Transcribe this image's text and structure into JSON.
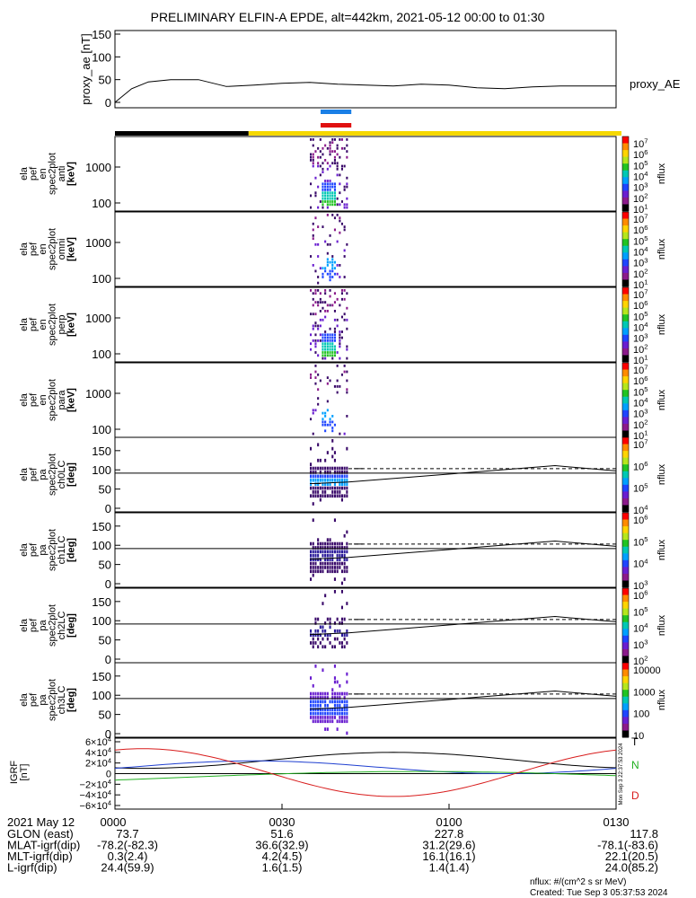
{
  "header": {
    "title": "PRELIMINARY ELFIN-A EPDE, alt=442km, 2021-05-12 00:00 to 01:30"
  },
  "colors": {
    "state_black": "#000000",
    "state_yellow": "#f5d800",
    "marker_blue": "#1a7fe6",
    "marker_red": "#e01010",
    "field_black": "#000000",
    "field_blue": "#1f3fd0",
    "field_green": "#22b022",
    "field_red": "#d81c1c"
  },
  "chart_data": {
    "type": "line",
    "time_range": [
      "0000",
      "0130"
    ],
    "time_ticks": [
      "0000",
      "0030",
      "0100",
      "0130"
    ],
    "proxy_ae": {
      "ylabel": "proxy_ae [nT]",
      "yticks": [
        "150",
        "100",
        "50",
        "0"
      ],
      "ylim": [
        0,
        150
      ],
      "series_name": "proxy_AE",
      "t_min": [
        0,
        3,
        6,
        10,
        15,
        20,
        25,
        30,
        35,
        40,
        45,
        50,
        55,
        60,
        65,
        70,
        75,
        80,
        85,
        90
      ],
      "values": [
        0,
        30,
        45,
        50,
        50,
        35,
        38,
        42,
        44,
        40,
        38,
        36,
        40,
        38,
        32,
        30,
        34,
        36,
        36,
        36
      ]
    },
    "state_bar_split_min": 24,
    "markers": {
      "start_min": 35,
      "end_min": 41
    },
    "panels": [
      {
        "id": "anti",
        "ylabel": [
          "ela",
          "pef",
          "en",
          "spec2plot",
          "anti",
          "[keV]"
        ],
        "yticks": [
          "1000",
          "100"
        ],
        "zticks": [
          "10^7",
          "10^6",
          "10^5",
          "10^4",
          "10^3",
          "10^2",
          "10^1"
        ],
        "zlabel": "nflux"
      },
      {
        "id": "omni",
        "ylabel": [
          "ela",
          "pef",
          "en",
          "spec2plot",
          "omni",
          "[keV]"
        ],
        "yticks": [
          "1000",
          "100"
        ],
        "zticks": [
          "10^7",
          "10^6",
          "10^5",
          "10^4",
          "10^3",
          "10^2",
          "10^1"
        ],
        "zlabel": "nflux"
      },
      {
        "id": "perp",
        "ylabel": [
          "ela",
          "pef",
          "en",
          "spec2plot",
          "perp",
          "[keV]"
        ],
        "yticks": [
          "1000",
          "100"
        ],
        "zticks": [
          "10^7",
          "10^6",
          "10^5",
          "10^4",
          "10^3",
          "10^2",
          "10^1"
        ],
        "zlabel": "nflux"
      },
      {
        "id": "para",
        "ylabel": [
          "ela",
          "pef",
          "en",
          "spec2plot",
          "para",
          "[keV]"
        ],
        "yticks": [
          "1000",
          "100"
        ],
        "zticks": [
          "10^7",
          "10^6",
          "10^5",
          "10^4",
          "10^3",
          "10^2",
          "10^1"
        ],
        "zlabel": "nflux"
      },
      {
        "id": "ch0LC",
        "ylabel": [
          "ela",
          "pef",
          "pa",
          "spec2plot",
          "ch0LC",
          "[deg]"
        ],
        "yticks": [
          "150",
          "100",
          "50",
          "0"
        ],
        "zticks": [
          "10^7",
          "10^6",
          "10^5",
          "10^4"
        ],
        "zlabel": "nflux"
      },
      {
        "id": "ch1LC",
        "ylabel": [
          "ela",
          "pef",
          "pa",
          "spec2plot",
          "ch1LC",
          "[deg]"
        ],
        "yticks": [
          "150",
          "100",
          "50",
          "0"
        ],
        "zticks": [
          "10^6",
          "10^5",
          "10^4",
          "10^3"
        ],
        "zlabel": "nflux"
      },
      {
        "id": "ch2LC",
        "ylabel": [
          "ela",
          "pef",
          "pa",
          "spec2plot",
          "ch2LC",
          "[deg]"
        ],
        "yticks": [
          "150",
          "100",
          "50",
          "0"
        ],
        "zticks": [
          "10^6",
          "10^5",
          "10^4",
          "10^3",
          "10^2"
        ],
        "zlabel": "nflux"
      },
      {
        "id": "ch3LC",
        "ylabel": [
          "ela",
          "pef",
          "pa",
          "spec2plot",
          "ch3LC",
          "[deg]"
        ],
        "yticks": [
          "150",
          "100",
          "50",
          "0"
        ],
        "zticks": [
          "10000",
          "1000",
          "100",
          "10"
        ],
        "zlabel": "nflux"
      }
    ],
    "igrf": {
      "ylabel": [
        "IGRF",
        "[nT]"
      ],
      "yticks": [
        "6×10^4",
        "4×10^4",
        "2×10^4",
        "0",
        "−2×10^4",
        "−4×10^4",
        "−6×10^4"
      ],
      "ylim": [
        -60000,
        60000
      ],
      "side_labels": [
        "T",
        "N",
        "D"
      ],
      "stamp": "Mon Sep  3 22:37:53 2024"
    }
  },
  "annotations": {
    "date_label": "2021 May 12",
    "rows": [
      {
        "label": "GLON (east)",
        "values": [
          "73.7",
          "51.6",
          "227.8",
          "117.8"
        ]
      },
      {
        "label": "MLAT-igrf(dip)",
        "values": [
          "-78.2(-82.3)",
          "36.6(32.9)",
          "31.2(29.6)",
          "-78.1(-83.6)"
        ]
      },
      {
        "label": "MLT-igrf(dip)",
        "values": [
          "0.3(2.4)",
          "4.2(4.5)",
          "16.1(16.1)",
          "22.1(20.5)"
        ]
      },
      {
        "label": "L-igrf(dip)",
        "values": [
          "24.4(59.9)",
          "1.6(1.5)",
          "1.4(1.4)",
          "24.0(85.2)"
        ]
      }
    ]
  },
  "footer": {
    "units_note": "nflux: #/(cm^2 s sr MeV)",
    "created": "Created: Tue Sep  3 05:37:53 2024"
  }
}
